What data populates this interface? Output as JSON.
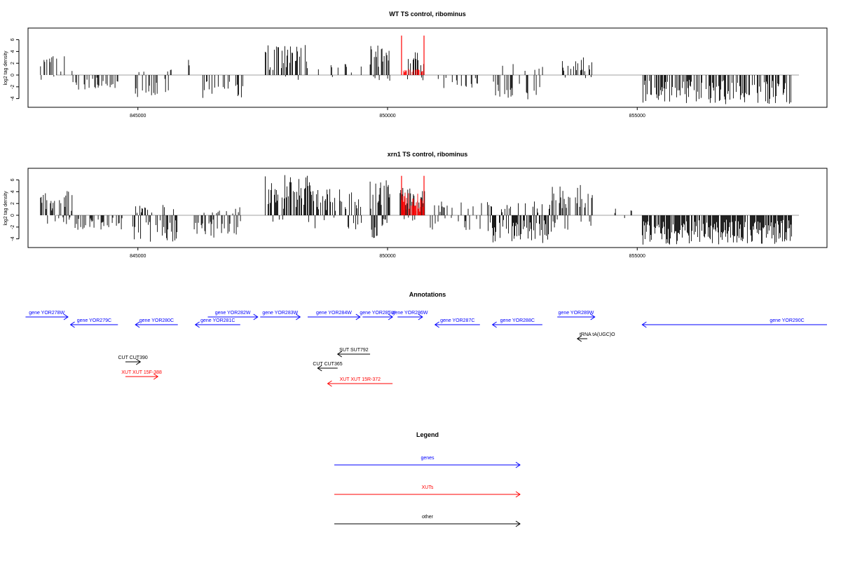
{
  "chart_data": [
    {
      "type": "bar",
      "title": "WT TS control, ribominus",
      "ylabel": "log2 tag density",
      "xlim": [
        842800,
        858800
      ],
      "ylim": [
        -5,
        7.5
      ],
      "yticks": [
        -4,
        -2,
        0,
        2,
        4,
        6
      ],
      "xticks": [
        845000,
        850000,
        855000
      ],
      "grid": false,
      "series": [
        {
          "color": "#000000",
          "kind": "coverage",
          "regions": [
            {
              "x0": 843050,
              "x1": 843700,
              "min": -1.5,
              "max": 3.3,
              "density": 0.35
            },
            {
              "x0": 843700,
              "x1": 844700,
              "min": -2.5,
              "max": 0,
              "density": 0.35
            },
            {
              "x0": 844950,
              "x1": 845700,
              "min": -3.8,
              "max": 1.0,
              "density": 0.35
            },
            {
              "x0": 846000,
              "x1": 846050,
              "min": 0,
              "max": 2.8,
              "density": 0.35
            },
            {
              "x0": 846300,
              "x1": 847100,
              "min": -4.0,
              "max": 0,
              "density": 0.35
            },
            {
              "x0": 847550,
              "x1": 848450,
              "min": -1.0,
              "max": 5.2,
              "density": 0.55
            },
            {
              "x0": 848600,
              "x1": 849500,
              "min": -1.0,
              "max": 2.0,
              "density": 0.2
            },
            {
              "x0": 849650,
              "x1": 850050,
              "min": -1.2,
              "max": 5.8,
              "density": 0.8
            },
            {
              "x0": 850400,
              "x1": 850750,
              "min": -1.0,
              "max": 5.0,
              "density": 0.5
            },
            {
              "x0": 851000,
              "x1": 851800,
              "min": -2.5,
              "max": 0,
              "density": 0.25
            },
            {
              "x0": 852050,
              "x1": 853200,
              "min": -4.4,
              "max": 2.0,
              "density": 0.35
            },
            {
              "x0": 853500,
              "x1": 854100,
              "min": -1.0,
              "max": 3.0,
              "density": 0.35
            },
            {
              "x0": 855100,
              "x1": 858100,
              "min": -5.0,
              "max": 0,
              "density": 0.45
            }
          ]
        },
        {
          "color": "#ff0000",
          "kind": "highlight",
          "positions": [
            850280,
            850730
          ],
          "max": 6.7
        },
        {
          "color": "#ff0000",
          "kind": "highlight-fill",
          "regions": [
            {
              "x0": 850280,
              "x1": 850730,
              "min": 0,
              "max": 1.2,
              "density": 0.5
            }
          ]
        }
      ]
    },
    {
      "type": "bar",
      "title": "xrn1 TS control, ribominus",
      "ylabel": "log2 tag density",
      "xlim": [
        842800,
        858800
      ],
      "ylim": [
        -5,
        7.5
      ],
      "yticks": [
        -4,
        -2,
        0,
        2,
        4,
        6
      ],
      "xticks": [
        845000,
        850000,
        855000
      ],
      "grid": false,
      "series": [
        {
          "color": "#000000",
          "kind": "coverage",
          "regions": [
            {
              "x0": 843050,
              "x1": 843700,
              "min": -1.5,
              "max": 4.3,
              "density": 0.6
            },
            {
              "x0": 843700,
              "x1": 844700,
              "min": -2.5,
              "max": 0,
              "density": 0.35
            },
            {
              "x0": 844900,
              "x1": 845800,
              "min": -4.5,
              "max": 2.0,
              "density": 0.6
            },
            {
              "x0": 846100,
              "x1": 847100,
              "min": -4.5,
              "max": 1.5,
              "density": 0.5
            },
            {
              "x0": 847550,
              "x1": 848450,
              "min": -1.5,
              "max": 7.0,
              "density": 0.75
            },
            {
              "x0": 848450,
              "x1": 849500,
              "min": -2.5,
              "max": 4.5,
              "density": 0.55
            },
            {
              "x0": 849650,
              "x1": 850050,
              "min": -4.0,
              "max": 6.0,
              "density": 0.95
            },
            {
              "x0": 850250,
              "x1": 850750,
              "min": -1.0,
              "max": 5.0,
              "density": 0.8
            },
            {
              "x0": 850800,
              "x1": 851900,
              "min": -2.5,
              "max": 2.5,
              "density": 0.45
            },
            {
              "x0": 852000,
              "x1": 853300,
              "min": -4.7,
              "max": 2.5,
              "density": 0.8
            },
            {
              "x0": 853300,
              "x1": 854100,
              "min": -2.5,
              "max": 5.3,
              "density": 0.55
            },
            {
              "x0": 854550,
              "x1": 854900,
              "min": -1.0,
              "max": 1.5,
              "density": 0.15
            },
            {
              "x0": 855100,
              "x1": 858100,
              "min": -5.0,
              "max": 0,
              "density": 0.8
            }
          ]
        },
        {
          "color": "#ff0000",
          "kind": "highlight",
          "positions": [
            850280,
            850730
          ],
          "max": 6.7
        },
        {
          "color": "#ff0000",
          "kind": "highlight-fill",
          "regions": [
            {
              "x0": 850280,
              "x1": 850730,
              "min": 0,
              "max": 4.0,
              "density": 0.6
            }
          ]
        }
      ]
    }
  ],
  "annotations": {
    "title": "Annotations",
    "colors": {
      "gene": "#0000ff",
      "xut": "#ff0000",
      "other": "#000000"
    },
    "features": [
      {
        "label": "gene YOR278W",
        "kind": "gene",
        "strand": "+",
        "start": 842750,
        "end": 843600,
        "row": 0
      },
      {
        "label": "gene YOR279C",
        "kind": "gene",
        "strand": "-",
        "start": 843650,
        "end": 844600,
        "row": 1
      },
      {
        "label": "gene YOR280C",
        "kind": "gene",
        "strand": "-",
        "start": 844950,
        "end": 845800,
        "row": 1
      },
      {
        "label": "gene YOR281C",
        "kind": "gene",
        "strand": "-",
        "start": 846150,
        "end": 847050,
        "row": 1
      },
      {
        "label": "gene YOR282W",
        "kind": "gene",
        "strand": "+",
        "start": 846400,
        "end": 847400,
        "row": 0
      },
      {
        "label": "gene YOR283W",
        "kind": "gene",
        "strand": "+",
        "start": 847450,
        "end": 848250,
        "row": 0
      },
      {
        "label": "gene YOR284W",
        "kind": "gene",
        "strand": "+",
        "start": 848400,
        "end": 849450,
        "row": 0
      },
      {
        "label": "gene YOR285W",
        "kind": "gene",
        "strand": "+",
        "start": 849500,
        "end": 850100,
        "row": 0
      },
      {
        "label": "gene YOR286W",
        "kind": "gene",
        "strand": "+",
        "start": 850200,
        "end": 850700,
        "row": 0
      },
      {
        "label": "gene YOR287C",
        "kind": "gene",
        "strand": "-",
        "start": 850950,
        "end": 851850,
        "row": 1
      },
      {
        "label": "gene YOR288C",
        "kind": "gene",
        "strand": "-",
        "start": 852100,
        "end": 853100,
        "row": 1
      },
      {
        "label": "gene YOR289W",
        "kind": "gene",
        "strand": "+",
        "start": 853400,
        "end": 854150,
        "row": 0
      },
      {
        "label": "gene YOR290C",
        "kind": "gene",
        "strand": "-",
        "start": 855100,
        "end": 858800,
        "row": 1,
        "labelAt": 858000
      },
      {
        "label": "tRNA tA(UGC)O",
        "kind": "other",
        "strand": "-",
        "start": 853800,
        "end": 854000,
        "row": 2,
        "labelAt": 854200
      },
      {
        "label": "CUT CUT390",
        "kind": "other",
        "strand": "+",
        "start": 844750,
        "end": 845050,
        "row": 4
      },
      {
        "label": "XUT XUT 15F-388",
        "kind": "xut",
        "strand": "+",
        "start": 844750,
        "end": 845400,
        "row": 6
      },
      {
        "label": "SUT SUT792",
        "kind": "other",
        "strand": "-",
        "start": 849000,
        "end": 849650,
        "row": 3
      },
      {
        "label": "CUT CUT365",
        "kind": "other",
        "strand": "-",
        "start": 848600,
        "end": 849000,
        "row": 5
      },
      {
        "label": "XUT XUT 15R-372",
        "kind": "xut",
        "strand": "-",
        "start": 848800,
        "end": 850100,
        "row": 7
      }
    ]
  },
  "legend": {
    "title": "Legend",
    "items": [
      {
        "label": "genes",
        "color": "#0000ff"
      },
      {
        "label": "XUTs",
        "color": "#ff0000"
      },
      {
        "label": "other",
        "color": "#000000"
      }
    ]
  }
}
